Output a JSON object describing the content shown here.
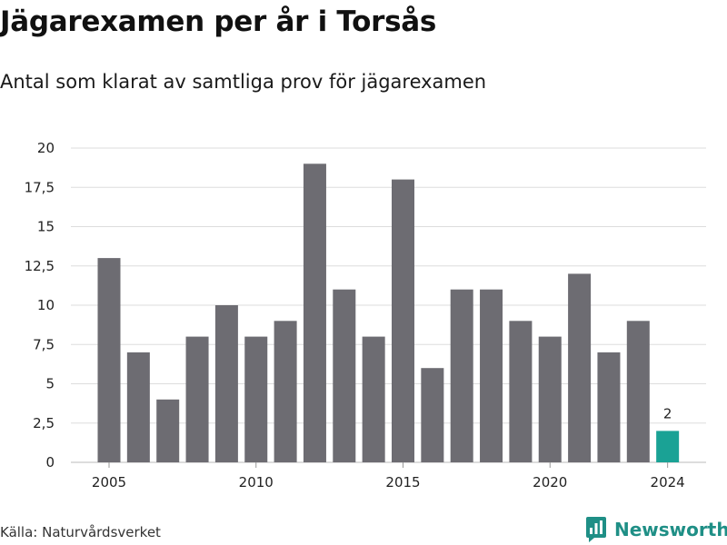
{
  "header": {
    "title": "Jägarexamen per år i Torsås",
    "subtitle": "Antal som klarat av samtliga prov för jägarexamen"
  },
  "footer": {
    "source": "Källa: Naturvårdsverket",
    "brand": "Newsworthy",
    "brand_icon": "newsworthy-logo-icon"
  },
  "colors": {
    "bar": "#6d6c72",
    "highlight": "#1aa295",
    "grid": "#dddddd",
    "brand": "#1f8f86"
  },
  "chart_data": {
    "type": "bar",
    "x": [
      2005,
      2006,
      2007,
      2008,
      2009,
      2010,
      2011,
      2012,
      2013,
      2014,
      2015,
      2016,
      2017,
      2018,
      2019,
      2020,
      2021,
      2022,
      2023,
      2024
    ],
    "values": [
      13,
      7,
      4,
      8,
      10,
      8,
      9,
      19,
      11,
      8,
      18,
      6,
      11,
      11,
      9,
      8,
      12,
      7,
      9,
      2
    ],
    "highlight": {
      "x": 2024,
      "value": 2,
      "label": "2"
    },
    "xticks": [
      2005,
      2010,
      2015,
      2020,
      2024
    ],
    "yticks": [
      "0",
      "2,5",
      "5",
      "7,5",
      "10",
      "12,5",
      "15",
      "17,5",
      "20"
    ],
    "ylim": [
      0,
      20
    ],
    "grid": "horizontal",
    "legend": "none",
    "xlabel": "",
    "ylabel": ""
  }
}
